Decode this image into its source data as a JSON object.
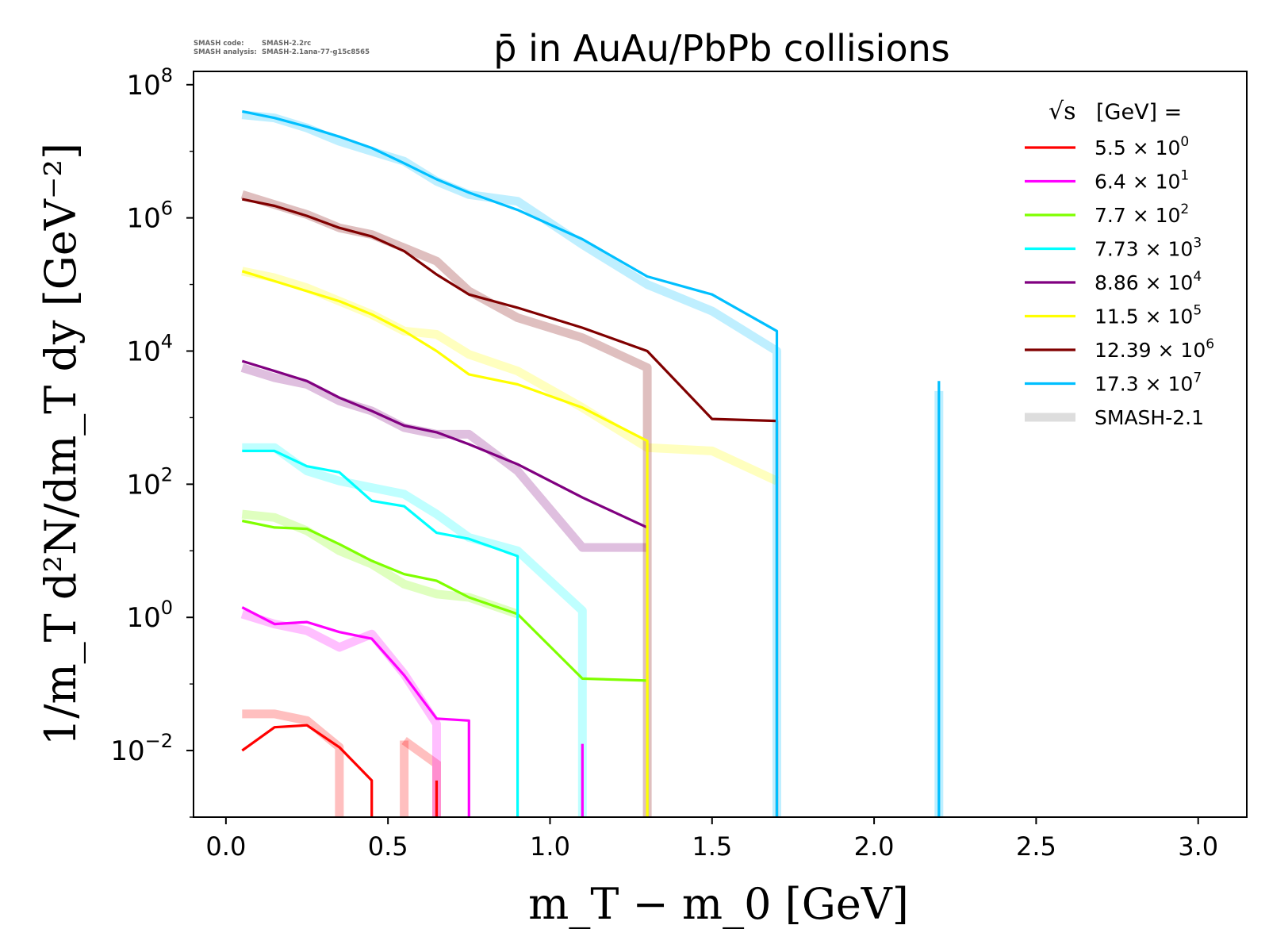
{
  "header": {
    "code_label": "SMASH code:",
    "code_value": "SMASH-2.2rc",
    "analysis_label": "SMASH analysis:",
    "analysis_value": "SMASH-2.1ana-77-g15c8565"
  },
  "colors": {
    "axis": "#000000",
    "reference_band_opacity": 0.25
  },
  "chart_data": {
    "type": "line",
    "title": "p̄ in AuAu/PbPb collisions",
    "xlabel": "m_T − m_0 [GeV]",
    "ylabel": "1/m_T d²N/dm_T dy [GeV⁻²]",
    "xlim": [
      -0.1,
      3.15
    ],
    "ylim_log10": [
      -3,
      8.2
    ],
    "yscale": "log",
    "grid": false,
    "x_ticks": [
      "0.0",
      "0.5",
      "1.0",
      "1.5",
      "2.0",
      "2.5",
      "3.0"
    ],
    "y_ticks": [
      {
        "base": "10",
        "exp": "8",
        "value": 8
      },
      {
        "base": "10",
        "exp": "6",
        "value": 6
      },
      {
        "base": "10",
        "exp": "4",
        "value": 4
      },
      {
        "base": "10",
        "exp": "2",
        "value": 2
      },
      {
        "base": "10",
        "exp": "0",
        "value": 0
      },
      {
        "base": "10",
        "exp": "−2",
        "value": -2
      }
    ],
    "legend": {
      "placement": "top-right",
      "title": "[GeV] =",
      "title_symbol": "√s",
      "reference_label": "SMASH-2.1",
      "reference_color": "#dddddd"
    },
    "series": [
      {
        "name_mantissa": "5.5",
        "name_exp": "0",
        "color": "#ff0000",
        "x": [
          0.05,
          0.15,
          0.25,
          0.35,
          0.45,
          0.45
        ],
        "y_log10": [
          -2.0,
          -1.65,
          -1.62,
          -1.95,
          -2.45,
          -3.1
        ],
        "spike": {
          "x": 0.65,
          "y_top": -2.45
        },
        "reference": {
          "x": [
            0.05,
            0.15,
            0.25,
            0.35,
            0.35
          ],
          "y_log10": [
            -1.45,
            -1.45,
            -1.55,
            -1.95,
            -3.1
          ],
          "spike": {
            "x": 0.55,
            "y_top": -1.85,
            "x2": 0.65,
            "y2": -2.2
          }
        }
      },
      {
        "name_mantissa": "6.4",
        "name_exp": "1",
        "color": "#ff00ff",
        "x": [
          0.05,
          0.15,
          0.25,
          0.35,
          0.45,
          0.55,
          0.65,
          0.75,
          0.75
        ],
        "y_log10": [
          0.15,
          -0.1,
          -0.07,
          -0.22,
          -0.32,
          -0.87,
          -1.52,
          -1.55,
          -3.1
        ],
        "spike": {
          "x": 1.1,
          "y_top": -1.9
        },
        "reference": {
          "x": [
            0.05,
            0.15,
            0.25,
            0.35,
            0.45,
            0.55,
            0.65,
            0.65
          ],
          "y_log10": [
            0.05,
            -0.1,
            -0.2,
            -0.45,
            -0.25,
            -0.85,
            -1.6,
            -3.1
          ]
        }
      },
      {
        "name_mantissa": "7.7",
        "name_exp": "2",
        "color": "#7fff00",
        "x": [
          0.05,
          0.15,
          0.25,
          0.35,
          0.45,
          0.55,
          0.65,
          0.75,
          0.9,
          1.1,
          1.3,
          1.3
        ],
        "y_log10": [
          1.45,
          1.35,
          1.33,
          1.1,
          0.85,
          0.65,
          0.55,
          0.3,
          0.05,
          -0.92,
          -0.95,
          -3.1
        ],
        "reference": {
          "x": [
            0.05,
            0.15,
            0.25,
            0.35,
            0.45,
            0.55,
            0.65,
            0.75,
            0.9
          ],
          "y_log10": [
            1.55,
            1.5,
            1.3,
            1.0,
            0.8,
            0.5,
            0.35,
            0.3,
            0.05
          ]
        }
      },
      {
        "name_mantissa": "7.73",
        "name_exp": "3",
        "color": "#00ffff",
        "x": [
          0.05,
          0.15,
          0.25,
          0.35,
          0.45,
          0.55,
          0.65,
          0.75,
          0.9,
          0.9
        ],
        "y_log10": [
          2.5,
          2.5,
          2.27,
          2.18,
          1.75,
          1.67,
          1.27,
          1.18,
          0.92,
          -3.1
        ],
        "reference": {
          "x": [
            0.05,
            0.15,
            0.25,
            0.35,
            0.45,
            0.55,
            0.65,
            0.75,
            0.9,
            1.1,
            1.1
          ],
          "y_log10": [
            2.55,
            2.55,
            2.2,
            2.05,
            1.95,
            1.85,
            1.55,
            1.2,
            1.0,
            0.1,
            -3.1
          ]
        }
      },
      {
        "name_mantissa": "8.86",
        "name_exp": "4",
        "color": "#800080",
        "x": [
          0.05,
          0.15,
          0.25,
          0.35,
          0.45,
          0.55,
          0.65,
          0.75,
          0.9,
          1.1,
          1.3
        ],
        "y_log10": [
          3.85,
          3.7,
          3.55,
          3.3,
          3.1,
          2.88,
          2.78,
          2.6,
          2.3,
          1.8,
          1.35
        ],
        "reference": {
          "x": [
            0.05,
            0.15,
            0.25,
            0.35,
            0.45,
            0.55,
            0.65,
            0.75,
            0.9,
            1.1,
            1.3
          ],
          "y_log10": [
            3.75,
            3.6,
            3.5,
            3.25,
            3.1,
            2.85,
            2.75,
            2.75,
            2.2,
            1.05,
            1.05
          ]
        }
      },
      {
        "name_mantissa": "11.5",
        "name_exp": "5",
        "color": "#ffff00",
        "x": [
          0.05,
          0.15,
          0.25,
          0.35,
          0.45,
          0.55,
          0.65,
          0.75,
          0.9,
          1.1,
          1.3,
          1.3
        ],
        "y_log10": [
          5.2,
          5.05,
          4.9,
          4.75,
          4.55,
          4.3,
          4.0,
          3.65,
          3.5,
          3.15,
          2.65,
          -3.1
        ],
        "reference": {
          "x": [
            0.05,
            0.15,
            0.25,
            0.35,
            0.45,
            0.55,
            0.65,
            0.75,
            0.9,
            1.1,
            1.3,
            1.5,
            1.7
          ],
          "y_log10": [
            5.2,
            5.1,
            4.95,
            4.75,
            4.55,
            4.3,
            4.25,
            3.95,
            3.7,
            3.15,
            2.55,
            2.5,
            2.05
          ]
        }
      },
      {
        "name_mantissa": "12.39",
        "name_exp": "6",
        "color": "#800000",
        "x": [
          0.05,
          0.15,
          0.25,
          0.35,
          0.45,
          0.55,
          0.65,
          0.75,
          0.9,
          1.1,
          1.3,
          1.5,
          1.7,
          1.7
        ],
        "y_log10": [
          6.28,
          6.18,
          6.03,
          5.85,
          5.72,
          5.5,
          5.15,
          4.85,
          4.65,
          4.35,
          4.0,
          2.98,
          2.95,
          -3.1
        ],
        "reference": {
          "x": [
            0.05,
            0.15,
            0.25,
            0.35,
            0.45,
            0.55,
            0.65,
            0.75,
            0.9,
            1.1,
            1.3,
            1.3
          ],
          "y_log10": [
            6.35,
            6.2,
            6.05,
            5.85,
            5.75,
            5.55,
            5.35,
            4.9,
            4.5,
            4.2,
            3.75,
            -3.1
          ]
        }
      },
      {
        "name_mantissa": "17.3",
        "name_exp": "7",
        "color": "#00bfff",
        "x": [
          0.05,
          0.15,
          0.25,
          0.35,
          0.45,
          0.55,
          0.65,
          0.75,
          0.9,
          1.1,
          1.3,
          1.5,
          1.7,
          1.7
        ],
        "y_log10": [
          7.6,
          7.5,
          7.37,
          7.22,
          7.05,
          6.82,
          6.58,
          6.38,
          6.12,
          5.68,
          5.12,
          4.85,
          4.3,
          -3.1
        ],
        "spike": {
          "x": 2.2,
          "y_top": 3.55
        },
        "reference": {
          "x": [
            0.05,
            0.15,
            0.25,
            0.35,
            0.45,
            0.55,
            0.65,
            0.75,
            0.9,
            1.1,
            1.3,
            1.5,
            1.7,
            1.7
          ],
          "y_log10": [
            7.55,
            7.5,
            7.35,
            7.15,
            7.0,
            6.85,
            6.55,
            6.35,
            6.25,
            5.6,
            5.0,
            4.6,
            4.0,
            -3.1
          ],
          "spike": {
            "x": 2.2,
            "y_top": 3.4
          }
        }
      }
    ]
  }
}
